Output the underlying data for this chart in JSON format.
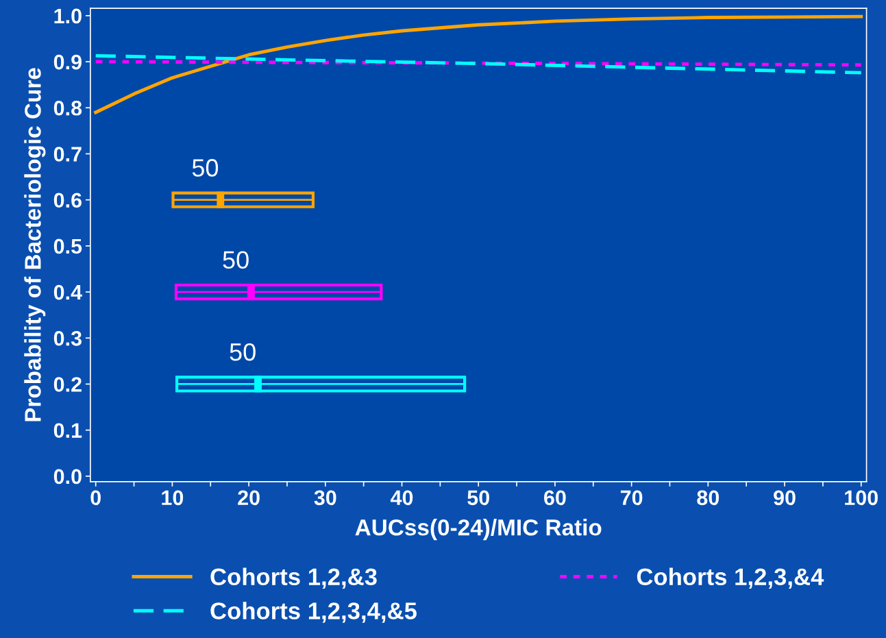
{
  "chart_data": {
    "type": "line",
    "xlabel": "AUCss(0-24)/MIC Ratio",
    "ylabel": "Probability of Bacteriologic Cure",
    "xlim": [
      -0.7,
      100.7
    ],
    "ylim": [
      -0.012,
      1.016
    ],
    "xticks": [
      0,
      {
        "value": 5,
        "label": null
      },
      10,
      {
        "value": 15,
        "label": null
      },
      20,
      {
        "value": 25,
        "label": null
      },
      30,
      {
        "value": 35,
        "label": null
      },
      40,
      {
        "value": 45,
        "label": null
      },
      50,
      {
        "value": 55,
        "label": null
      },
      60,
      {
        "value": 65,
        "label": null
      },
      70,
      {
        "value": 75,
        "label": null
      },
      80,
      {
        "value": 85,
        "label": null
      },
      90,
      {
        "value": 95,
        "label": null
      },
      100
    ],
    "yticks": [
      {
        "value": 0,
        "label": "0.0"
      },
      0.1,
      0.2,
      0.3,
      0.4,
      0.5,
      0.6,
      0.7,
      0.8,
      0.9,
      {
        "value": 1,
        "label": "1.0"
      }
    ],
    "grid": false,
    "legend": "bottom",
    "series": [
      {
        "name": "Cohorts 1,2,&3",
        "line_style": "solid",
        "color": "#ffa500",
        "x": [
          0,
          5,
          10,
          15,
          17,
          20,
          25,
          30,
          35,
          40,
          50,
          60,
          70,
          80,
          90,
          100
        ],
        "values": [
          0.79,
          0.83,
          0.865,
          0.89,
          0.9,
          0.915,
          0.932,
          0.946,
          0.958,
          0.967,
          0.98,
          0.988,
          0.993,
          0.996,
          0.997,
          0.998
        ]
      },
      {
        "name": "Cohorts 1,2,3,&4",
        "line_style": "dotted",
        "color": "#ff00ff",
        "x": [
          0,
          50,
          100
        ],
        "values": [
          0.9,
          0.897,
          0.893
        ]
      },
      {
        "name": "Cohorts 1,2,3,4,&5",
        "line_style": "dashed",
        "color": "#00ffff",
        "x": [
          0,
          25,
          50,
          75,
          100
        ],
        "values": [
          0.913,
          0.904,
          0.896,
          0.886,
          0.876
        ]
      },
      {
        "type": "scatter",
        "color": "#ffa500",
        "x": [
          16.3
        ],
        "values": [
          0.6
        ],
        "xerrors": [
          [
            10.1,
            28.4
          ]
        ]
      },
      {
        "type": "scatter",
        "color": "#ff00ff",
        "x": [
          20.3
        ],
        "values": [
          0.4
        ],
        "xerrors": [
          [
            10.5,
            37.3
          ]
        ]
      },
      {
        "type": "scatter",
        "color": "#00ffff",
        "x": [
          21.2
        ],
        "values": [
          0.2
        ],
        "xerrors": [
          [
            10.6,
            48.2
          ]
        ]
      }
    ],
    "annotations": [
      "50",
      "50",
      "50"
    ]
  }
}
